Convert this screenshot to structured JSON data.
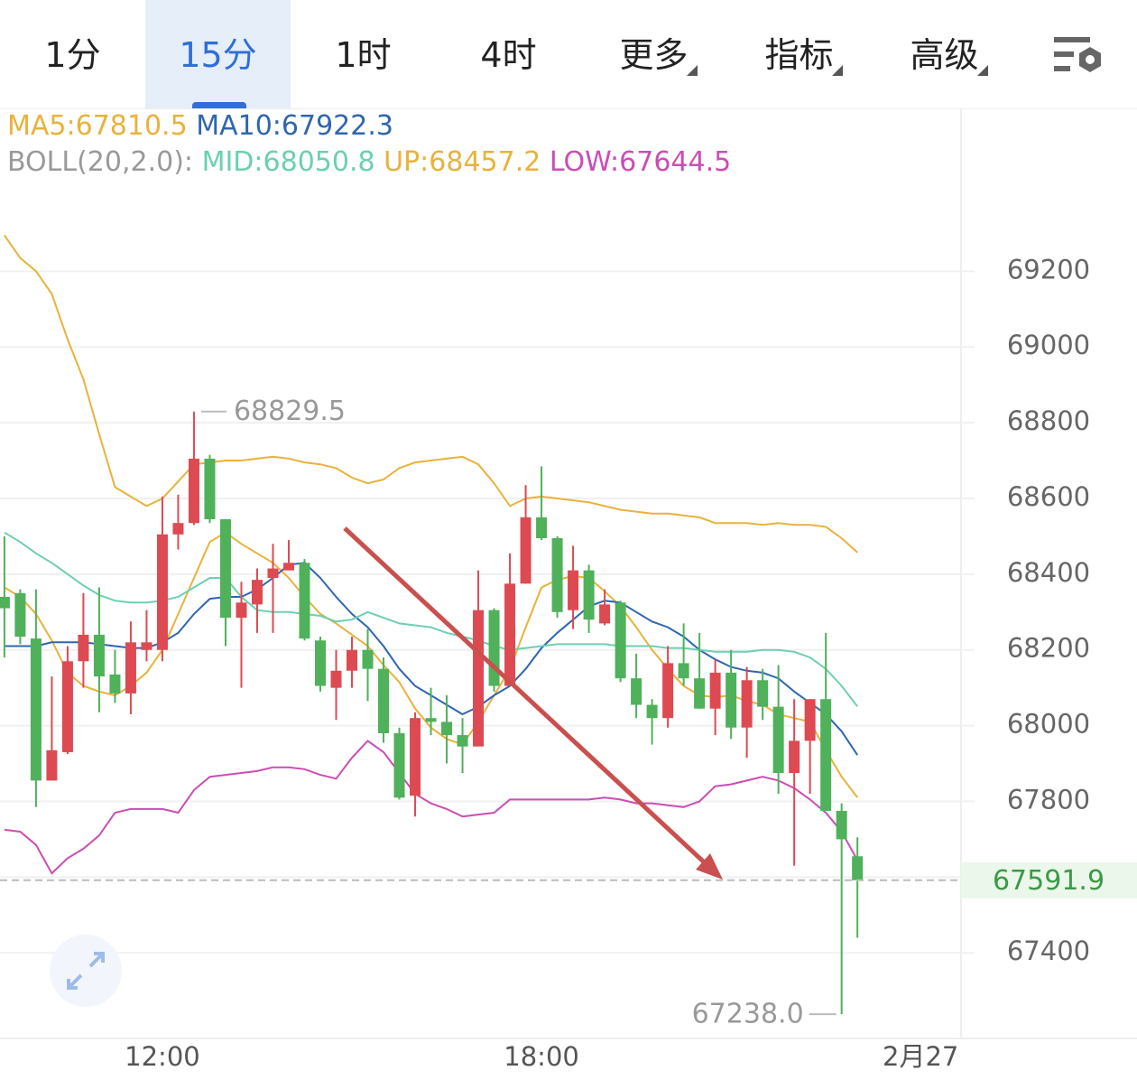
{
  "tabs": {
    "items": [
      "1分",
      "15分",
      "1时",
      "4时",
      "更多",
      "指标",
      "高级"
    ],
    "active": 1
  },
  "chart_data": {
    "type": "candlestick",
    "boll_label": "BOLL(20,2.0):",
    "x": [
      9.5,
      9.75,
      10,
      10.25,
      10.5,
      10.75,
      11,
      11.25,
      11.5,
      11.75,
      12,
      12.25,
      12.5,
      12.75,
      13,
      13.25,
      13.5,
      13.75,
      14,
      14.25,
      14.5,
      14.75,
      15,
      15.25,
      15.5,
      15.75,
      16,
      16.25,
      16.5,
      16.75,
      17,
      17.25,
      17.5,
      17.75,
      18,
      18.25,
      18.5,
      18.75,
      19,
      19.25,
      19.5,
      19.75,
      20,
      20.25,
      20.5,
      20.75,
      21,
      21.25,
      21.5,
      21.75,
      22,
      22.25,
      22.5,
      22.75,
      23
    ],
    "open": [
      68340,
      68350,
      68230,
      67855,
      67930,
      68170,
      68240,
      68135,
      68085,
      68200,
      68200,
      68505,
      68535,
      68705,
      68545,
      68285,
      68320,
      68390,
      68410,
      68430,
      68225,
      68100,
      68145,
      68200,
      68150,
      67980,
      67815,
      68020,
      68010,
      67975,
      67945,
      68305,
      68105,
      68375,
      68550,
      68495,
      68305,
      68410,
      68270,
      68325,
      68125,
      68055,
      68020,
      68165,
      68125,
      68045,
      68140,
      67995,
      68120,
      68050,
      67875,
      67960,
      68070,
      67775,
      67655
    ],
    "high": [
      68500,
      68360,
      68360,
      68130,
      68210,
      68350,
      68365,
      68200,
      68275,
      68305,
      68605,
      68610,
      68829.5,
      68715,
      68545,
      68380,
      68415,
      68480,
      68490,
      68440,
      68235,
      68200,
      68235,
      68255,
      68180,
      67995,
      68035,
      68100,
      68080,
      68020,
      68410,
      68310,
      68455,
      68635,
      68685,
      68500,
      68475,
      68425,
      68360,
      68330,
      68190,
      68070,
      68210,
      68270,
      68245,
      68175,
      68200,
      68155,
      68150,
      68160,
      68070,
      68070,
      68245,
      67795,
      67705
    ],
    "low": [
      68180,
      68215,
      67785,
      67855,
      67925,
      68100,
      68035,
      68060,
      68030,
      68170,
      68170,
      68465,
      68530,
      68535,
      68210,
      68100,
      68245,
      68245,
      68410,
      68225,
      68090,
      68015,
      68100,
      68065,
      67955,
      67805,
      67760,
      67975,
      67900,
      67875,
      67945,
      68090,
      68105,
      68375,
      68490,
      68285,
      68255,
      68245,
      68265,
      68115,
      68020,
      67950,
      67995,
      68105,
      68045,
      67975,
      67965,
      67915,
      68015,
      67820,
      67630,
      67820,
      67775,
      67238,
      67440
    ],
    "close": [
      68310,
      68235,
      67855,
      67935,
      68170,
      68240,
      68130,
      68085,
      68220,
      68220,
      68505,
      68535,
      68705,
      68545,
      68285,
      68325,
      68385,
      68415,
      68430,
      68230,
      68105,
      68145,
      68200,
      68150,
      67980,
      67810,
      68020,
      68010,
      67975,
      67945,
      68305,
      68105,
      68375,
      68550,
      68495,
      68300,
      68410,
      68280,
      68320,
      68125,
      68055,
      68020,
      68165,
      68125,
      68045,
      68140,
      67995,
      68120,
      68050,
      67875,
      67960,
      68070,
      67775,
      67700,
      67591.9
    ],
    "up_color": "#dd4a52",
    "down_color": "#4fb15a",
    "series": [
      {
        "name": "MA5:67810.5",
        "color": "#e9b23b",
        "values": [
          68365,
          68340,
          68295,
          68225,
          68140,
          68105,
          68090,
          68080,
          68105,
          68140,
          68200,
          68295,
          68390,
          68485,
          68510,
          68480,
          68455,
          68430,
          68390,
          68340,
          68295,
          68270,
          68240,
          68210,
          68160,
          68115,
          68045,
          67995,
          67965,
          67950,
          68010,
          68080,
          68150,
          68260,
          68365,
          68385,
          68395,
          68390,
          68355,
          68315,
          68260,
          68200,
          68150,
          68105,
          68080,
          68075,
          68080,
          68065,
          68055,
          68030,
          68020,
          68010,
          67935,
          67865,
          67810.5
        ]
      },
      {
        "name": "MA10:67922.3",
        "color": "#2f66b0",
        "values": [
          68210,
          68210,
          68210,
          68220,
          68220,
          68220,
          68215,
          68210,
          68205,
          68205,
          68220,
          68245,
          68295,
          68335,
          68340,
          68340,
          68360,
          68390,
          68425,
          68430,
          68390,
          68340,
          68295,
          68260,
          68210,
          68150,
          68105,
          68080,
          68055,
          68030,
          68050,
          68080,
          68105,
          68150,
          68205,
          68245,
          68280,
          68315,
          68330,
          68325,
          68300,
          68275,
          68260,
          68235,
          68200,
          68175,
          68155,
          68145,
          68140,
          68125,
          68090,
          68060,
          68030,
          67985,
          67922.3
        ]
      },
      {
        "name": "MID:68050.8",
        "color": "#6ccfb3",
        "values": [
          68510,
          68485,
          68455,
          68430,
          68400,
          68370,
          68345,
          68330,
          68325,
          68325,
          68330,
          68340,
          68365,
          68390,
          68390,
          68340,
          68305,
          68300,
          68300,
          68295,
          68290,
          68275,
          68280,
          68300,
          68285,
          68270,
          68265,
          68260,
          68245,
          68235,
          68225,
          68210,
          68200,
          68205,
          68210,
          68215,
          68215,
          68215,
          68215,
          68210,
          68210,
          68210,
          68205,
          68205,
          68200,
          68195,
          68195,
          68195,
          68200,
          68200,
          68195,
          68180,
          68150,
          68105,
          68050.8
        ]
      },
      {
        "name": "UP:68457.2",
        "color": "#e9b23b",
        "values": [
          69295,
          69235,
          69200,
          69140,
          69020,
          68915,
          68770,
          68630,
          68605,
          68580,
          68600,
          68645,
          68690,
          68695,
          68700,
          68700,
          68705,
          68710,
          68705,
          68695,
          68690,
          68680,
          68655,
          68640,
          68650,
          68680,
          68695,
          68700,
          68705,
          68710,
          68690,
          68640,
          68580,
          68600,
          68605,
          68600,
          68595,
          68590,
          68580,
          68570,
          68565,
          68560,
          68560,
          68555,
          68550,
          68535,
          68535,
          68535,
          68530,
          68535,
          68530,
          68530,
          68525,
          68495,
          68457.2
        ]
      },
      {
        "name": "LOW:67644.5",
        "color": "#cc4db3",
        "values": [
          67725,
          67720,
          67685,
          67610,
          67650,
          67675,
          67710,
          67770,
          67780,
          67780,
          67780,
          67770,
          67830,
          67865,
          67870,
          67875,
          67880,
          67890,
          67890,
          67885,
          67870,
          67860,
          67915,
          67960,
          67930,
          67875,
          67820,
          67795,
          67780,
          67760,
          67765,
          67770,
          67805,
          67805,
          67805,
          67805,
          67805,
          67805,
          67810,
          67805,
          67795,
          67795,
          67790,
          67785,
          67800,
          67840,
          67845,
          67855,
          67865,
          67855,
          67835,
          67805,
          67770,
          67720,
          67644.5
        ]
      }
    ],
    "high_label": {
      "value": 68829.5,
      "label": "68829.5",
      "x": 12.5
    },
    "low_label": {
      "value": 67238,
      "label": "67238.0",
      "x": 22.75
    },
    "last_price": {
      "value": 67591.9,
      "label": "67591.9"
    },
    "xlim": [
      9.43,
      24.64
    ],
    "xticks": [
      {
        "value": 12,
        "label": "12:00"
      },
      {
        "value": 18,
        "label": "18:00"
      },
      {
        "value": 24,
        "label": "2月27"
      }
    ],
    "ylim": [
      67174,
      69630
    ],
    "yticks": [
      67400,
      67600,
      67800,
      68000,
      68200,
      68400,
      68600,
      68800,
      69000,
      69200
    ],
    "ytick_labels_shown": [
      67400,
      67800,
      68000,
      68200,
      68400,
      68600,
      68800,
      69000,
      69200
    ],
    "grid": true
  }
}
